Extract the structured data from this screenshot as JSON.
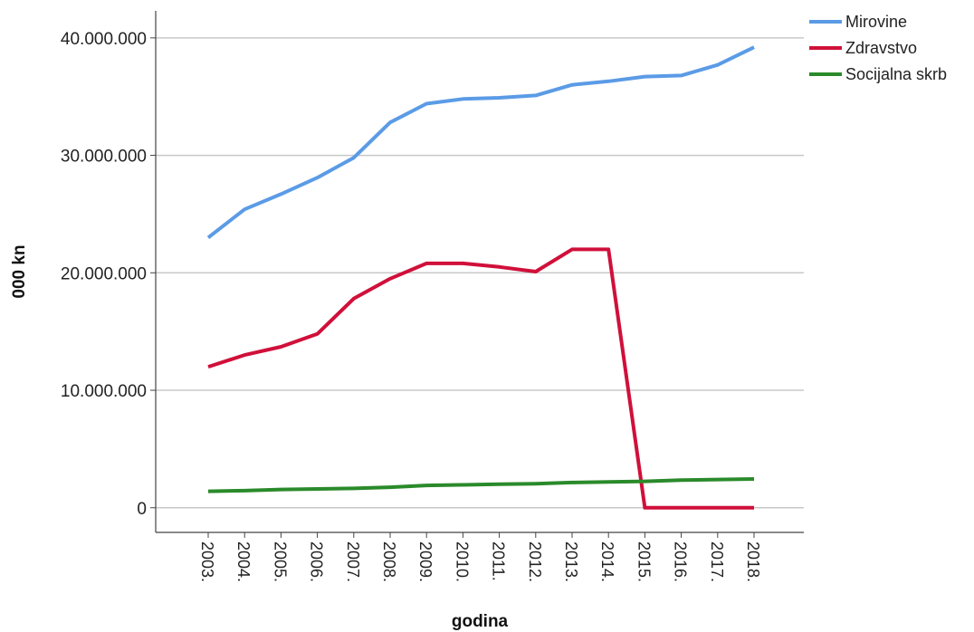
{
  "chart_data": {
    "type": "line",
    "xlabel": "godina",
    "ylabel": "000 kn",
    "x": [
      "2003.",
      "2004.",
      "2005.",
      "2006.",
      "2007.",
      "2008.",
      "2009.",
      "2010.",
      "2011.",
      "2012.",
      "2013.",
      "2014.",
      "2015.",
      "2016.",
      "2017.",
      "2018."
    ],
    "y_ticks": [
      {
        "value": 0,
        "label": "0"
      },
      {
        "value": 10000000,
        "label": "10.000.000"
      },
      {
        "value": 20000000,
        "label": "20.000.000"
      },
      {
        "value": 30000000,
        "label": "30.000.000"
      },
      {
        "value": 40000000,
        "label": "40.000.000"
      }
    ],
    "ylim": [
      -2100000,
      42300000
    ],
    "grid": "horizontal",
    "legend_position": "top-right",
    "series": [
      {
        "name": "Mirovine",
        "color": "#5b9be6",
        "values": [
          23000000,
          25400000,
          26700000,
          28100000,
          29800000,
          32800000,
          34400000,
          34800000,
          34900000,
          35100000,
          36000000,
          36300000,
          36700000,
          36800000,
          37700000,
          39200000
        ]
      },
      {
        "name": "Zdravstvo",
        "color": "#d0103a",
        "values": [
          12000000,
          13000000,
          13700000,
          14800000,
          17800000,
          19500000,
          20800000,
          20800000,
          20500000,
          20100000,
          22000000,
          22000000,
          0,
          0,
          0,
          0
        ]
      },
      {
        "name": "Socijalna skrb",
        "color": "#2a8a2a",
        "values": [
          1400000,
          1450000,
          1550000,
          1600000,
          1650000,
          1750000,
          1900000,
          1950000,
          2000000,
          2050000,
          2150000,
          2200000,
          2250000,
          2350000,
          2400000,
          2450000
        ]
      }
    ]
  }
}
